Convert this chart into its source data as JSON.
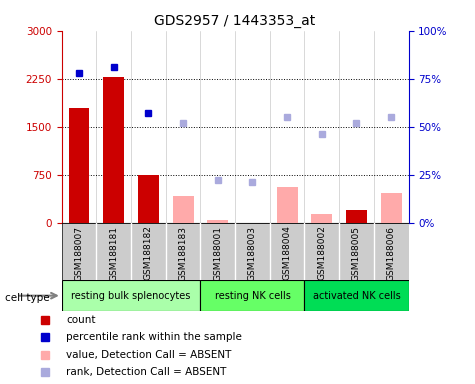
{
  "title": "GDS2957 / 1443353_at",
  "samples": [
    "GSM188007",
    "GSM188181",
    "GSM188182",
    "GSM188183",
    "GSM188001",
    "GSM188003",
    "GSM188004",
    "GSM188002",
    "GSM188005",
    "GSM188006"
  ],
  "cell_types": [
    {
      "label": "resting bulk splenocytes",
      "start": 0,
      "end": 4,
      "color": "#aaffaa"
    },
    {
      "label": "resting NK cells",
      "start": 4,
      "end": 7,
      "color": "#66ff66"
    },
    {
      "label": "activated NK cells",
      "start": 7,
      "end": 10,
      "color": "#00dd55"
    }
  ],
  "count_values": [
    1800,
    2270,
    750,
    null,
    null,
    null,
    null,
    null,
    200,
    null
  ],
  "count_color": "#cc0000",
  "absent_value_bars": [
    null,
    null,
    null,
    420,
    50,
    null,
    560,
    130,
    null,
    470
  ],
  "absent_value_color": "#ffaaaa",
  "percentile_rank_present": [
    78,
    81,
    57,
    null,
    null,
    null,
    null,
    null,
    null,
    null
  ],
  "percentile_rank_absent": [
    null,
    null,
    null,
    52,
    22,
    21,
    55,
    46,
    52,
    55
  ],
  "percentile_present_color": "#0000cc",
  "percentile_absent_color": "#aaaadd",
  "ylim_left": [
    0,
    3000
  ],
  "ylim_right": [
    0,
    100
  ],
  "yticks_left": [
    0,
    750,
    1500,
    2250,
    3000
  ],
  "ytick_labels_left": [
    "0",
    "750",
    "1500",
    "2250",
    "3000"
  ],
  "yticks_right": [
    0,
    25,
    50,
    75,
    100
  ],
  "ytick_labels_right": [
    "0%",
    "25%",
    "50%",
    "75%",
    "100%"
  ],
  "hlines": [
    750,
    1500,
    2250
  ],
  "bg_color": "#ffffff",
  "cell_type_row_color": "#cccccc",
  "cell_type_label": "cell type"
}
